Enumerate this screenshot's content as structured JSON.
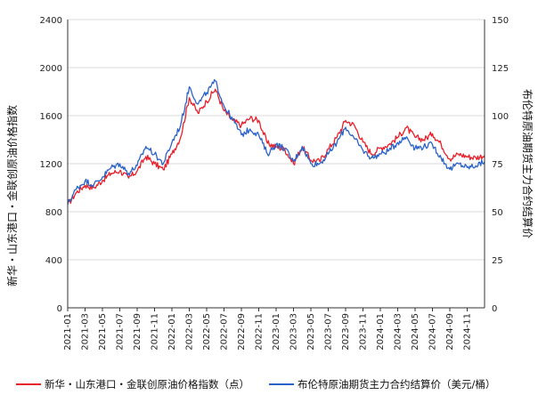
{
  "chart_data": {
    "type": "line",
    "title": "",
    "ylabel_left": "新华・山东港口・金联创原油价格指数",
    "ylabel_right": "布伦特原油期货主力合约结算价",
    "y_left": {
      "lim": [
        0,
        2400
      ],
      "ticks": [
        "0",
        "400",
        "800",
        "1200",
        "1600",
        "2000",
        "2400"
      ]
    },
    "y_right": {
      "lim": [
        0,
        150
      ],
      "ticks": [
        "0",
        "25",
        "50",
        "75",
        "100",
        "125",
        "150"
      ]
    },
    "x_ticks": [
      "2021-01",
      "2021-03",
      "2021-05",
      "2021-07",
      "2021-09",
      "2021-11",
      "2022-01",
      "2022-03",
      "2022-05",
      "2022-07",
      "2022-09",
      "2022-11",
      "2023-01",
      "2023-03",
      "2023-05",
      "2023-07",
      "2023-09",
      "2023-11",
      "2024-01",
      "2024-03",
      "2024-05",
      "2024-07",
      "2024-09",
      "2024-11"
    ],
    "grid": "horizontal",
    "legend_position": "bottom",
    "series": [
      {
        "name": "新华・山东港口・金联创原油价格指数（点）",
        "axis": "left",
        "color": "#e8202a",
        "points": [
          [
            "2021-01",
            860
          ],
          [
            "2021-02",
            960
          ],
          [
            "2021-03",
            1020
          ],
          [
            "2021-04",
            1000
          ],
          [
            "2021-05",
            1060
          ],
          [
            "2021-06",
            1120
          ],
          [
            "2021-07",
            1140
          ],
          [
            "2021-08",
            1080
          ],
          [
            "2021-09",
            1140
          ],
          [
            "2021-10",
            1260
          ],
          [
            "2021-11",
            1200
          ],
          [
            "2021-12",
            1150
          ],
          [
            "2022-01",
            1280
          ],
          [
            "2022-02",
            1420
          ],
          [
            "2022-03",
            1750
          ],
          [
            "2022-04",
            1620
          ],
          [
            "2022-05",
            1720
          ],
          [
            "2022-06",
            1820
          ],
          [
            "2022-07",
            1640
          ],
          [
            "2022-08",
            1560
          ],
          [
            "2022-09",
            1520
          ],
          [
            "2022-10",
            1580
          ],
          [
            "2022-11",
            1560
          ],
          [
            "2022-12",
            1370
          ],
          [
            "2023-01",
            1340
          ],
          [
            "2023-02",
            1320
          ],
          [
            "2023-03",
            1200
          ],
          [
            "2023-04",
            1340
          ],
          [
            "2023-05",
            1230
          ],
          [
            "2023-06",
            1220
          ],
          [
            "2023-07",
            1320
          ],
          [
            "2023-08",
            1420
          ],
          [
            "2023-09",
            1560
          ],
          [
            "2023-10",
            1520
          ],
          [
            "2023-11",
            1380
          ],
          [
            "2023-12",
            1280
          ],
          [
            "2024-01",
            1330
          ],
          [
            "2024-02",
            1360
          ],
          [
            "2024-03",
            1420
          ],
          [
            "2024-04",
            1500
          ],
          [
            "2024-05",
            1420
          ],
          [
            "2024-06",
            1400
          ],
          [
            "2024-07",
            1450
          ],
          [
            "2024-08",
            1360
          ],
          [
            "2024-09",
            1240
          ],
          [
            "2024-10",
            1280
          ],
          [
            "2024-11",
            1260
          ],
          [
            "2024-12",
            1250
          ],
          [
            "2025-01",
            1270
          ]
        ]
      },
      {
        "name": "布伦特原油期货主力合约结算价（美元/桶）",
        "axis": "right",
        "color": "#2a62c9",
        "points": [
          [
            "2021-01",
            54
          ],
          [
            "2021-02",
            62
          ],
          [
            "2021-03",
            66
          ],
          [
            "2021-04",
            64
          ],
          [
            "2021-05",
            68
          ],
          [
            "2021-06",
            73
          ],
          [
            "2021-07",
            75
          ],
          [
            "2021-08",
            70
          ],
          [
            "2021-09",
            74
          ],
          [
            "2021-10",
            84
          ],
          [
            "2021-11",
            80
          ],
          [
            "2021-12",
            75
          ],
          [
            "2022-01",
            86
          ],
          [
            "2022-02",
            95
          ],
          [
            "2022-03",
            115
          ],
          [
            "2022-04",
            106
          ],
          [
            "2022-05",
            112
          ],
          [
            "2022-06",
            118
          ],
          [
            "2022-07",
            105
          ],
          [
            "2022-08",
            98
          ],
          [
            "2022-09",
            90
          ],
          [
            "2022-10",
            93
          ],
          [
            "2022-11",
            90
          ],
          [
            "2022-12",
            80
          ],
          [
            "2023-01",
            85
          ],
          [
            "2023-02",
            83
          ],
          [
            "2023-03",
            76
          ],
          [
            "2023-04",
            84
          ],
          [
            "2023-05",
            75
          ],
          [
            "2023-06",
            75
          ],
          [
            "2023-07",
            80
          ],
          [
            "2023-08",
            86
          ],
          [
            "2023-09",
            94
          ],
          [
            "2023-10",
            88
          ],
          [
            "2023-11",
            82
          ],
          [
            "2023-12",
            78
          ],
          [
            "2024-01",
            80
          ],
          [
            "2024-02",
            82
          ],
          [
            "2024-03",
            86
          ],
          [
            "2024-04",
            89
          ],
          [
            "2024-05",
            83
          ],
          [
            "2024-06",
            84
          ],
          [
            "2024-07",
            85
          ],
          [
            "2024-08",
            78
          ],
          [
            "2024-09",
            72
          ],
          [
            "2024-10",
            75
          ],
          [
            "2024-11",
            73
          ],
          [
            "2024-12",
            74
          ],
          [
            "2025-01",
            76
          ]
        ]
      }
    ]
  }
}
